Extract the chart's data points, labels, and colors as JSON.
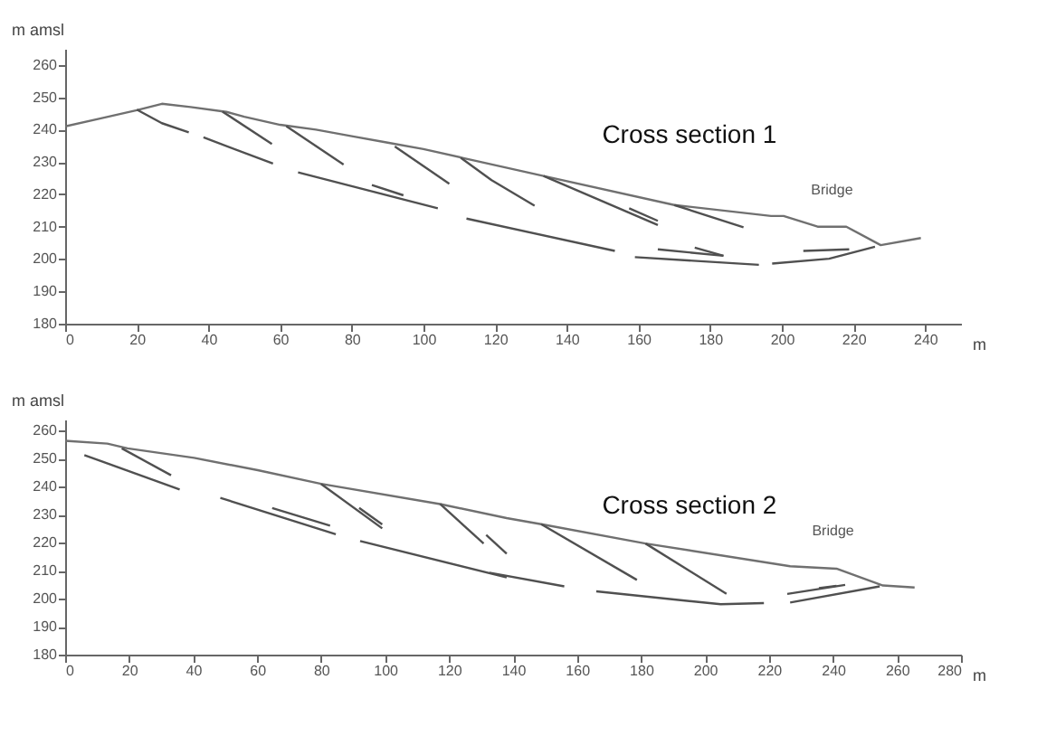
{
  "chart_data": [
    {
      "type": "line",
      "title": "Cross section 1",
      "xlabel": "m",
      "ylabel": "m amsl",
      "xlim": [
        0,
        250
      ],
      "ylim": [
        180,
        265
      ],
      "xticks": [
        0,
        20,
        40,
        60,
        80,
        100,
        120,
        140,
        160,
        180,
        200,
        220,
        240
      ],
      "yticks": [
        180,
        190,
        200,
        210,
        220,
        230,
        240,
        250,
        260
      ],
      "grid": false,
      "annotations": [
        {
          "text": "Bridge",
          "x": 214,
          "y": 210
        }
      ],
      "series": [
        {
          "color": "#707070",
          "x": [
            0,
            10,
            20,
            27,
            35,
            45,
            50,
            60,
            70,
            80,
            90,
            100,
            114,
            133.5,
            170,
            197,
            200.5,
            210,
            218,
            227.6,
            238.8
          ],
          "values": [
            241,
            243.5,
            246,
            248,
            247,
            245.5,
            244,
            241.5,
            240,
            238,
            236,
            234,
            230.5,
            225.7,
            216.7,
            213.3,
            213.3,
            210,
            210,
            204.3,
            206.5
          ]
        },
        {
          "color": "#505050",
          "x": [
            20,
            27,
            34.5
          ],
          "values": [
            246.2,
            242,
            239.2
          ]
        },
        {
          "color": "#505050",
          "x": [
            38.6,
            58
          ],
          "values": [
            237.6,
            229.5
          ]
        },
        {
          "color": "#505050",
          "x": [
            65,
            104
          ],
          "values": [
            226.8,
            215.7
          ]
        },
        {
          "color": "#505050",
          "x": [
            85.6,
            94.4
          ],
          "values": [
            222.9,
            219.7
          ]
        },
        {
          "color": "#505050",
          "x": [
            43.9,
            57.7
          ],
          "values": [
            245.6,
            235.6
          ]
        },
        {
          "color": "#505050",
          "x": [
            61.7,
            77.7
          ],
          "values": [
            241.1,
            229.2
          ]
        },
        {
          "color": "#505050",
          "x": [
            92,
            107.2
          ],
          "values": [
            234.8,
            223.3
          ]
        },
        {
          "color": "#505050",
          "x": [
            110.4,
            119,
            131
          ],
          "values": [
            231.3,
            224.4,
            216.5
          ]
        },
        {
          "color": "#505050",
          "x": [
            112,
            153.4
          ],
          "values": [
            212.5,
            202.5
          ]
        },
        {
          "color": "#505050",
          "x": [
            133.5,
            165.4
          ],
          "values": [
            225.7,
            210.5
          ]
        },
        {
          "color": "#505050",
          "x": [
            157.4,
            165.4
          ],
          "values": [
            215.7,
            211.8
          ]
        },
        {
          "color": "#505050",
          "x": [
            170,
            189.3
          ],
          "values": [
            216.7,
            209.8
          ]
        },
        {
          "color": "#505050",
          "x": [
            159,
            193.6
          ],
          "values": [
            200.6,
            198.2
          ]
        },
        {
          "color": "#505050",
          "x": [
            165.4,
            183.7
          ],
          "values": [
            203,
            201
          ]
        },
        {
          "color": "#505050",
          "x": [
            175.7,
            183.7
          ],
          "values": [
            203.5,
            201
          ]
        },
        {
          "color": "#505050",
          "x": [
            197.3,
            213.2,
            226
          ],
          "values": [
            198.6,
            200.1,
            203.8
          ]
        },
        {
          "color": "#505050",
          "x": [
            206,
            218.8
          ],
          "values": [
            202.5,
            203
          ]
        }
      ]
    },
    {
      "type": "line",
      "title": "Cross section 2",
      "xlabel": "m",
      "ylabel": "m amsl",
      "xlim": [
        0,
        280
      ],
      "ylim": [
        180,
        264
      ],
      "xticks": [
        0,
        20,
        40,
        60,
        80,
        100,
        120,
        140,
        160,
        180,
        200,
        220,
        240,
        260,
        280
      ],
      "yticks": [
        180,
        190,
        200,
        210,
        220,
        230,
        240,
        250,
        260
      ],
      "grid": false,
      "annotations": [
        {
          "text": "Bridge",
          "x": 240,
          "y": 211
        }
      ],
      "series": [
        {
          "color": "#707070",
          "x": [
            0,
            13.2,
            19.5,
            40.3,
            60.2,
            80,
            117.2,
            138,
            148.8,
            181.4,
            226.6,
            241.1,
            255.6,
            265.5
          ],
          "values": [
            256.4,
            255.4,
            253.7,
            250.3,
            245.9,
            241,
            233.8,
            228.8,
            226.6,
            219.7,
            211.6,
            210.7,
            204.7,
            204
          ]
        },
        {
          "color": "#505050",
          "x": [
            6,
            35.8
          ],
          "values": [
            251.3,
            239
          ]
        },
        {
          "color": "#505050",
          "x": [
            17.7,
            33.1
          ],
          "values": [
            253.7,
            244.1
          ]
        },
        {
          "color": "#505050",
          "x": [
            48.5,
            84.6
          ],
          "values": [
            236,
            223
          ]
        },
        {
          "color": "#505050",
          "x": [
            64.7,
            82.8
          ],
          "values": [
            232.4,
            226.1
          ]
        },
        {
          "color": "#505050",
          "x": [
            80,
            99.1
          ],
          "values": [
            241,
            225.1
          ]
        },
        {
          "color": "#505050",
          "x": [
            91.9,
            99.1
          ],
          "values": [
            232.4,
            226.5
          ]
        },
        {
          "color": "#505050",
          "x": [
            92.2,
            138
          ],
          "values": [
            220.6,
            207.6
          ]
        },
        {
          "color": "#505050",
          "x": [
            117.2,
            130.8
          ],
          "values": [
            233.8,
            219.7
          ]
        },
        {
          "color": "#505050",
          "x": [
            131.6,
            138
          ],
          "values": [
            222.8,
            216.1
          ]
        },
        {
          "color": "#505050",
          "x": [
            132.6,
            156
          ],
          "values": [
            209.3,
            204.4
          ]
        },
        {
          "color": "#505050",
          "x": [
            148.8,
            178.7
          ],
          "values": [
            226.6,
            206.7
          ]
        },
        {
          "color": "#505050",
          "x": [
            181.4,
            206.7
          ],
          "values": [
            219.7,
            201.7
          ]
        },
        {
          "color": "#505050",
          "x": [
            166,
            204.9,
            218.4
          ],
          "values": [
            202.6,
            198,
            198.4
          ]
        },
        {
          "color": "#505050",
          "x": [
            225.7,
            243.8
          ],
          "values": [
            201.7,
            204.9
          ]
        },
        {
          "color": "#505050",
          "x": [
            226.6,
            254.6
          ],
          "values": [
            198.6,
            204.4
          ]
        },
        {
          "color": "#505050",
          "x": [
            235.6,
            241.1
          ],
          "values": [
            203.8,
            204.6
          ]
        }
      ]
    }
  ]
}
